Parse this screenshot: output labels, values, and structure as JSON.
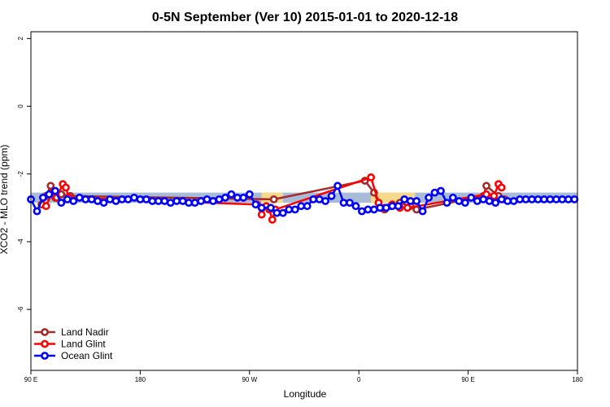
{
  "chart_data": {
    "type": "line",
    "title": "0-5N September (Ver 10)   2015-01-01 to 2020-12-18",
    "xlabel": "Longitude",
    "ylabel": "XCO2 - MLO trend (ppm)",
    "xlim": [
      -90,
      270
    ],
    "ylim": [
      -7.8,
      2.2
    ],
    "x_ticks": [
      {
        "value": -90,
        "label": "90 E"
      },
      {
        "value": -18,
        "label": "180"
      },
      {
        "value": 54,
        "label": "90 W"
      },
      {
        "value": 126,
        "label": "0"
      },
      {
        "value": 198,
        "label": "90 E"
      },
      {
        "value": 270,
        "label": "180"
      }
    ],
    "y_ticks": [
      {
        "value": 2,
        "label": "2"
      },
      {
        "value": 0,
        "label": "0"
      },
      {
        "value": -2,
        "label": "-2"
      },
      {
        "value": -4,
        "label": "-4"
      },
      {
        "value": -6,
        "label": "-6"
      }
    ],
    "reference_band": {
      "y_low": -2.85,
      "y_high": -2.55,
      "color": "#a8bcd8"
    },
    "highlight_bands": [
      {
        "x_start": 62,
        "x_end": 76,
        "y_low": -2.85,
        "y_high": -2.55,
        "color": "#f7d98b"
      },
      {
        "x_start": 134,
        "x_end": 163,
        "y_low": -2.85,
        "y_high": -2.55,
        "color": "#f7d98b"
      }
    ],
    "legend": {
      "position": "bottom-left",
      "entries": [
        "Land Nadir",
        "Land Glint",
        "Ocean Glint"
      ]
    },
    "grid": false,
    "series": [
      {
        "name": "Land Nadir",
        "color": "#a52a2a",
        "x": [
          -83,
          -80,
          -77,
          -74,
          -70,
          -64,
          70,
          130,
          136,
          139,
          143,
          147,
          153,
          160,
          164,
          208,
          210,
          218,
          222
        ],
        "y": [
          -2.9,
          -2.65,
          -2.35,
          -2.7,
          -2.6,
          -2.65,
          -2.75,
          -2.2,
          -2.55,
          -2.85,
          -3.05,
          -2.95,
          -2.85,
          -2.95,
          -3.05,
          -2.65,
          -2.35,
          -2.65,
          -2.75
        ]
      },
      {
        "name": "Land Glint",
        "color": "#ff0000",
        "x": [
          -80,
          -76,
          -73,
          -69,
          -67,
          -65,
          59,
          62,
          65,
          67,
          69,
          71,
          134,
          139,
          143,
          148,
          153,
          158,
          210,
          215,
          218,
          220
        ],
        "y": [
          -2.95,
          -2.55,
          -2.7,
          -2.3,
          -2.4,
          -2.7,
          -2.9,
          -3.2,
          -2.95,
          -3.05,
          -3.35,
          -3.05,
          -2.1,
          -2.85,
          -3.0,
          -2.9,
          -3.0,
          -3.0,
          -2.6,
          -2.65,
          -2.3,
          -2.4
        ]
      },
      {
        "name": "Ocean Glint",
        "color": "#0000ff",
        "x": [
          -90,
          -86,
          -82,
          -78,
          -74,
          -70,
          -66,
          -62,
          -58,
          -54,
          -50,
          -46,
          -42,
          -38,
          -34,
          -30,
          -26,
          -22,
          -18,
          -14,
          -10,
          -6,
          -2,
          2,
          6,
          10,
          14,
          18,
          22,
          26,
          30,
          34,
          38,
          42,
          46,
          50,
          54,
          58,
          62,
          68,
          72,
          76,
          80,
          84,
          88,
          92,
          96,
          100,
          104,
          108,
          112,
          116,
          120,
          124,
          128,
          132,
          136,
          140,
          144,
          148,
          152,
          156,
          160,
          164,
          168,
          172,
          176,
          180,
          184,
          188,
          192,
          196,
          200,
          204,
          208,
          212,
          216,
          220,
          224,
          228,
          232,
          236,
          240,
          244,
          248,
          252,
          256,
          260,
          264,
          268
        ],
        "y": [
          -2.75,
          -3.1,
          -2.7,
          -2.6,
          -2.5,
          -2.85,
          -2.75,
          -2.8,
          -2.7,
          -2.75,
          -2.75,
          -2.8,
          -2.85,
          -2.75,
          -2.8,
          -2.75,
          -2.75,
          -2.7,
          -2.75,
          -2.75,
          -2.8,
          -2.8,
          -2.8,
          -2.85,
          -2.8,
          -2.8,
          -2.85,
          -2.85,
          -2.8,
          -2.75,
          -2.8,
          -2.75,
          -2.7,
          -2.6,
          -2.7,
          -2.7,
          -2.6,
          -2.9,
          -3.0,
          -3.0,
          -3.15,
          -3.15,
          -3.05,
          -3.05,
          -2.95,
          -2.95,
          -2.75,
          -2.75,
          -2.8,
          -2.65,
          -2.35,
          -2.85,
          -2.85,
          -2.95,
          -3.1,
          -3.05,
          -3.05,
          -3.0,
          -3.0,
          -2.95,
          -2.95,
          -2.75,
          -2.8,
          -2.8,
          -3.1,
          -2.7,
          -2.55,
          -2.5,
          -2.85,
          -2.7,
          -2.8,
          -2.85,
          -2.7,
          -2.8,
          -2.75,
          -2.8,
          -2.85,
          -2.75,
          -2.8,
          -2.8,
          -2.75,
          -2.75,
          -2.75,
          -2.75,
          -2.75,
          -2.75,
          -2.75,
          -2.75,
          -2.75,
          -2.75
        ]
      }
    ]
  }
}
